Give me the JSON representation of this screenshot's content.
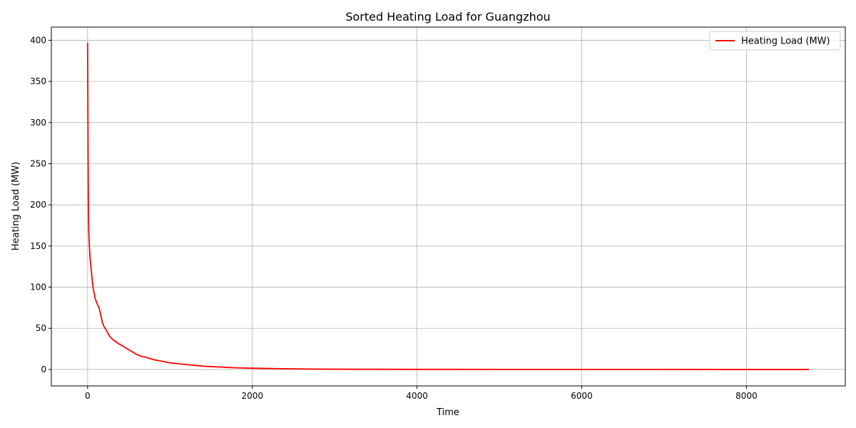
{
  "chart_data": {
    "type": "line",
    "title": "Sorted Heating Load for Guangzhou",
    "xlabel": "Time",
    "ylabel": "Heating Load (MW)",
    "xlim": [
      -440,
      9200
    ],
    "ylim": [
      -20,
      416
    ],
    "xticks": [
      0,
      2000,
      4000,
      6000,
      8000
    ],
    "yticks": [
      0,
      50,
      100,
      150,
      200,
      250,
      300,
      350,
      400
    ],
    "grid": true,
    "legend_position": "top-right",
    "series": [
      {
        "name": "Heating Load (MW)",
        "color": "#ff0000",
        "x": [
          0,
          3,
          6,
          10,
          15,
          22,
          30,
          40,
          50,
          60,
          70,
          80,
          90,
          100,
          120,
          140,
          160,
          180,
          200,
          230,
          270,
          300,
          350,
          400,
          450,
          500,
          550,
          600,
          650,
          700,
          800,
          900,
          1000,
          1200,
          1400,
          1600,
          1800,
          2000,
          2300,
          2700,
          3000,
          3500,
          4000,
          5000,
          6000,
          7000,
          8000,
          8759
        ],
        "y": [
          397,
          330,
          260,
          195,
          165,
          150,
          135,
          125,
          115,
          105,
          97,
          93,
          87,
          84,
          79,
          75,
          66,
          57,
          52,
          47,
          40,
          37,
          33,
          30,
          27,
          24,
          21,
          18,
          16,
          15,
          12,
          10,
          8,
          6,
          4,
          3,
          2,
          1.5,
          1,
          0.5,
          0.3,
          0.2,
          0.1,
          0.05,
          0.03,
          0.02,
          0.01,
          0
        ]
      }
    ]
  }
}
